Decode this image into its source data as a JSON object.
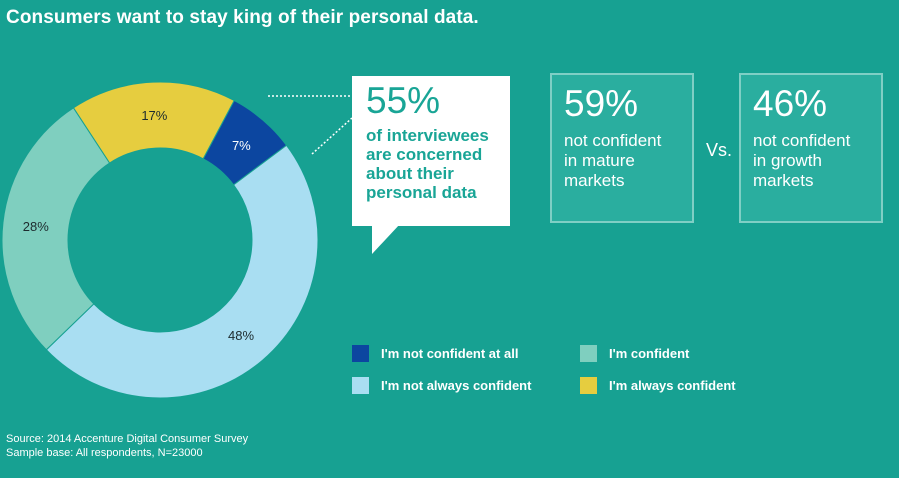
{
  "title": "Consumers want to stay king of their personal data.",
  "chart_data": {
    "type": "pie",
    "title": "",
    "slices": [
      {
        "label": "I'm not confident at all",
        "value": 7,
        "display": "7%",
        "color": "#0c46a0"
      },
      {
        "label": "I'm not always confident",
        "value": 48,
        "display": "48%",
        "color": "#a9def2"
      },
      {
        "label": "I'm confident",
        "value": 28,
        "display": "28%",
        "color": "#7fcfbf"
      },
      {
        "label": "I'm always confident",
        "value": 17,
        "display": "17%",
        "color": "#e6cd3f"
      }
    ],
    "legend_placement": "bottom-right"
  },
  "callout": {
    "big": "55%",
    "text": "of interviewees\nare concerned\nabout their\npersonal data"
  },
  "stats": [
    {
      "big": "59%",
      "text": "not confident\nin mature\nmarkets"
    },
    {
      "big": "46%",
      "text": "not confident\nin growth\nmarkets"
    }
  ],
  "vs_label": "Vs.",
  "legend": [
    {
      "label": "I'm not confident at all",
      "color": "#0c46a0"
    },
    {
      "label": "I'm confident",
      "color": "#7fcfbf"
    },
    {
      "label": "I'm not always confident",
      "color": "#a9def2"
    },
    {
      "label": "I'm always confident",
      "color": "#e6cd3f"
    }
  ],
  "source": {
    "line1": "Source: 2014 Accenture Digital Consumer Survey",
    "line2": "Sample base: All respondents, N=23000"
  }
}
